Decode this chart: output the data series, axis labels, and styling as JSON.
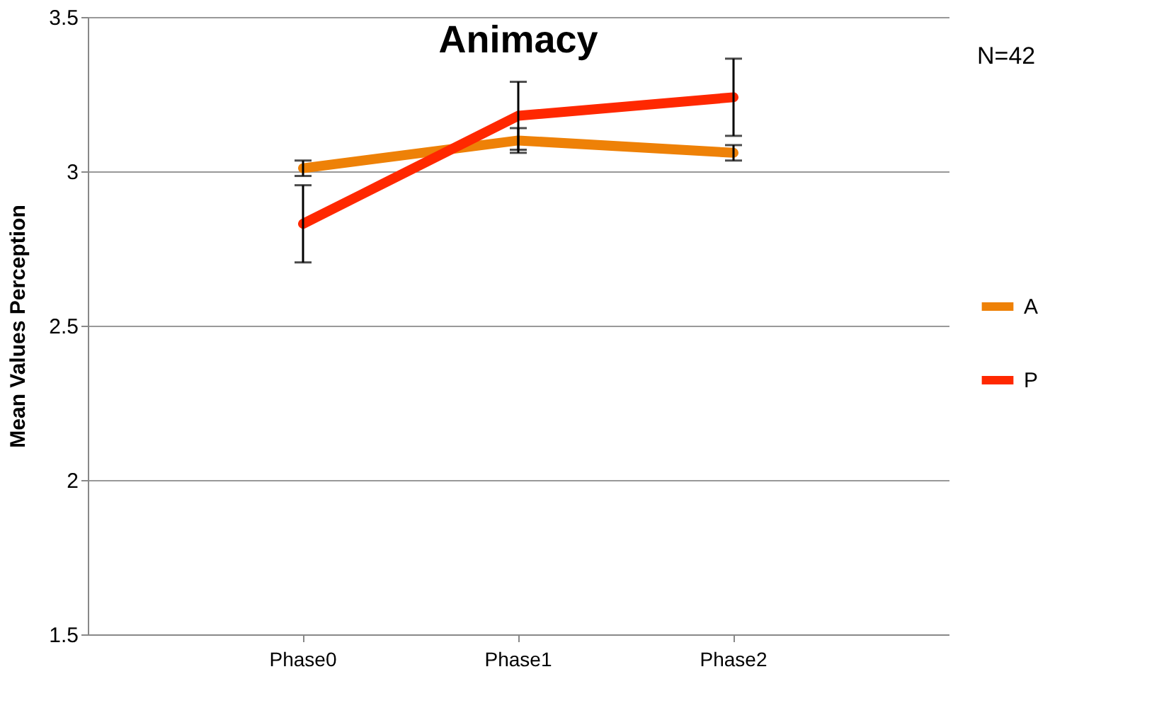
{
  "chart_data": {
    "type": "line",
    "title": "Animacy",
    "ylabel": "Mean Values Perception",
    "categories": [
      "Phase0",
      "Phase1",
      "Phase2"
    ],
    "series": [
      {
        "name": "A",
        "color": "#ee8107",
        "values": [
          3.01,
          3.1,
          3.06
        ],
        "errors": [
          0.025,
          0.04,
          0.025
        ]
      },
      {
        "name": "P",
        "color": "#ff2800",
        "values": [
          2.83,
          3.18,
          3.24
        ],
        "errors": [
          0.125,
          0.11,
          0.125
        ]
      }
    ],
    "ylim": [
      1.5,
      3.5
    ],
    "yticks": [
      1.5,
      2,
      2.5,
      3,
      3.5
    ],
    "grid": "y",
    "legend": "right",
    "marker": "none",
    "line_style": "solid",
    "annotations": [
      "N=42"
    ]
  }
}
